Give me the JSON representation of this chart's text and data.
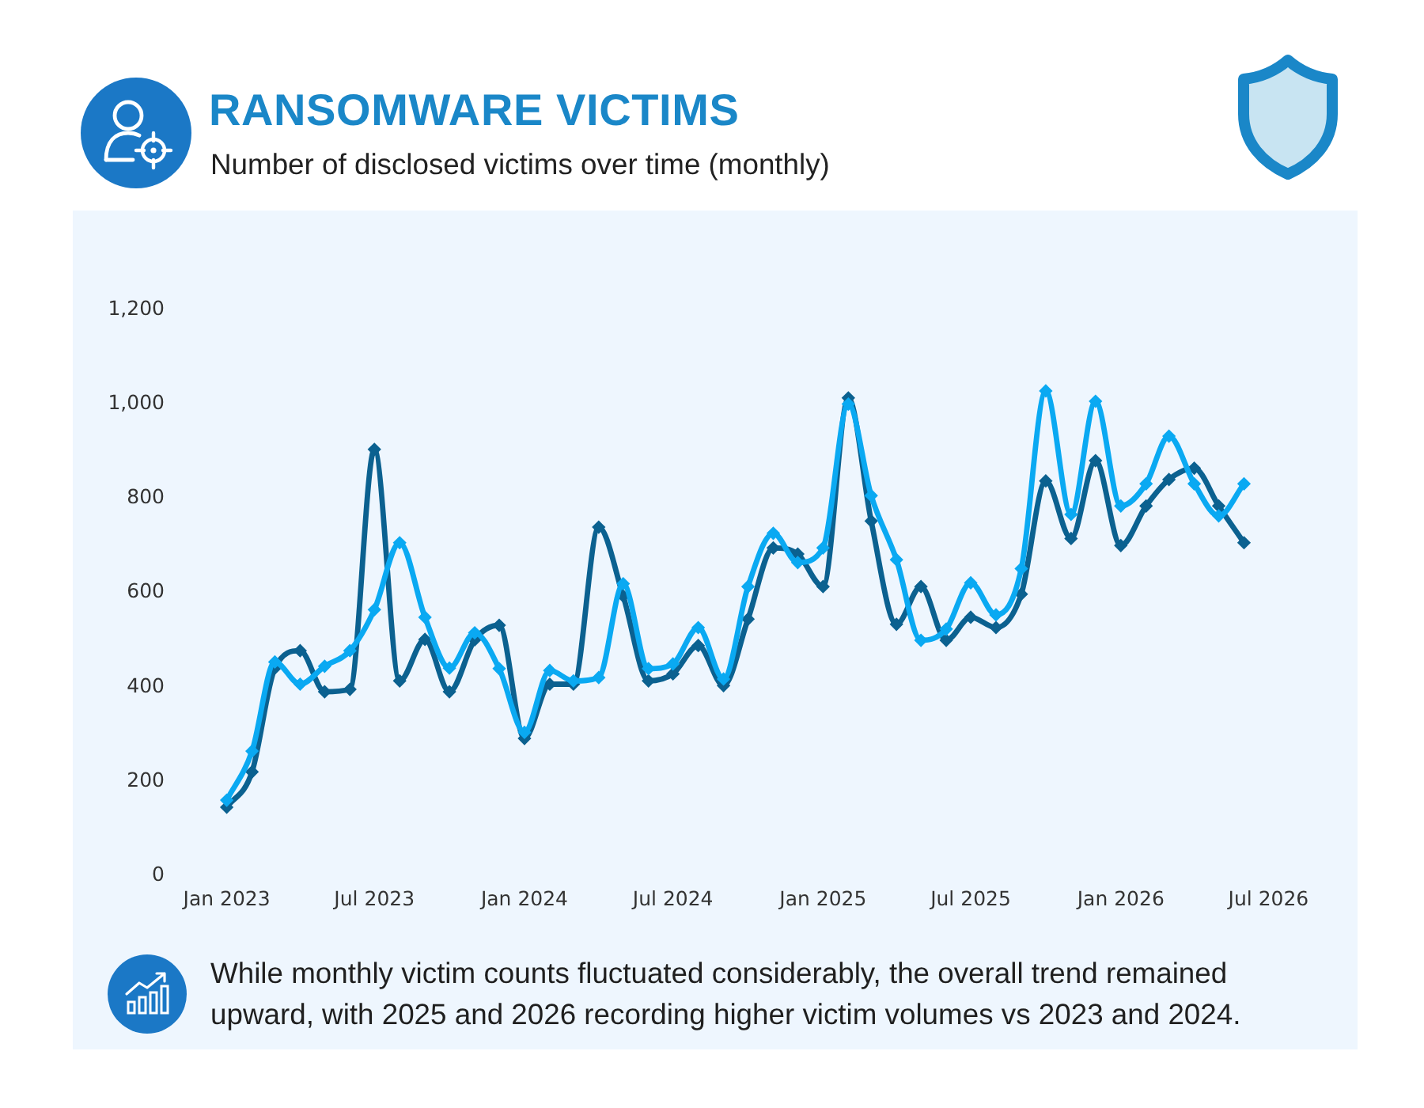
{
  "chart_data": {
    "type": "line",
    "title": "RANSOMWARE VICTIMS",
    "subtitle": "Number of disclosed victims over time (monthly)",
    "x": [
      "2023-01",
      "2023-02",
      "2023-03",
      "2023-04",
      "2023-05",
      "2023-06",
      "2023-07",
      "2023-08",
      "2023-09",
      "2023-10",
      "2023-11",
      "2023-12",
      "2024-01",
      "2024-02",
      "2024-03",
      "2024-04",
      "2024-05",
      "2024-06",
      "2024-07",
      "2024-08",
      "2024-09",
      "2024-10",
      "2024-11",
      "2024-12",
      "2025-01",
      "2025-02",
      "2025-03",
      "2025-04",
      "2025-05",
      "2025-06",
      "2025-07",
      "2025-08",
      "2025-09",
      "2025-10",
      "2025-11",
      "2025-12",
      "2026-01",
      "2026-02",
      "2026-03",
      "2026-04",
      "2026-05",
      "2026-06"
    ],
    "series": [
      {
        "color": "#0b6190",
        "values": [
          145,
          220,
          440,
          477,
          390,
          395,
          904,
          413,
          501,
          390,
          500,
          531,
          291,
          406,
          406,
          739,
          593,
          413,
          428,
          488,
          403,
          544,
          695,
          682,
          613,
          1013,
          752,
          533,
          613,
          499,
          548,
          526,
          597,
          837,
          715,
          880,
          700,
          784,
          840,
          864,
          784,
          706
        ]
      },
      {
        "color": "#0aa9f2",
        "values": [
          160,
          264,
          453,
          406,
          444,
          477,
          564,
          706,
          548,
          440,
          515,
          439,
          304,
          435,
          413,
          420,
          619,
          439,
          449,
          526,
          417,
          613,
          726,
          664,
          695,
          1000,
          806,
          670,
          499,
          523,
          621,
          553,
          651,
          1028,
          766,
          1006,
          784,
          831,
          932,
          831,
          763,
          831
        ]
      }
    ],
    "xlim": [
      "2023-01",
      "2026-07"
    ],
    "xticks": [
      {
        "value": "2023-01",
        "label": "Jan 2023"
      },
      {
        "value": "2023-07",
        "label": "Jul 2023"
      },
      {
        "value": "2024-01",
        "label": "Jan 2024"
      },
      {
        "value": "2024-07",
        "label": "Jul 2024"
      },
      {
        "value": "2025-01",
        "label": "Jan 2025"
      },
      {
        "value": "2025-07",
        "label": "Jul 2025"
      },
      {
        "value": "2026-01",
        "label": "Jan 2026"
      },
      {
        "value": "2026-07",
        "label": "Jul 2026"
      }
    ],
    "ylim": [
      0,
      1200
    ],
    "yticks": [
      0,
      200,
      400,
      600,
      800,
      {
        "value": 1000,
        "label": "1,000"
      },
      {
        "value": 1200,
        "label": "1,200"
      }
    ],
    "grid": false,
    "legend": false,
    "marker": "diamond",
    "annotations": [
      "While monthly victim counts fluctuated considerably, the overall trend remained upward, with 2025 and 2026 recording higher victim volumes vs 2023 and 2024."
    ]
  }
}
